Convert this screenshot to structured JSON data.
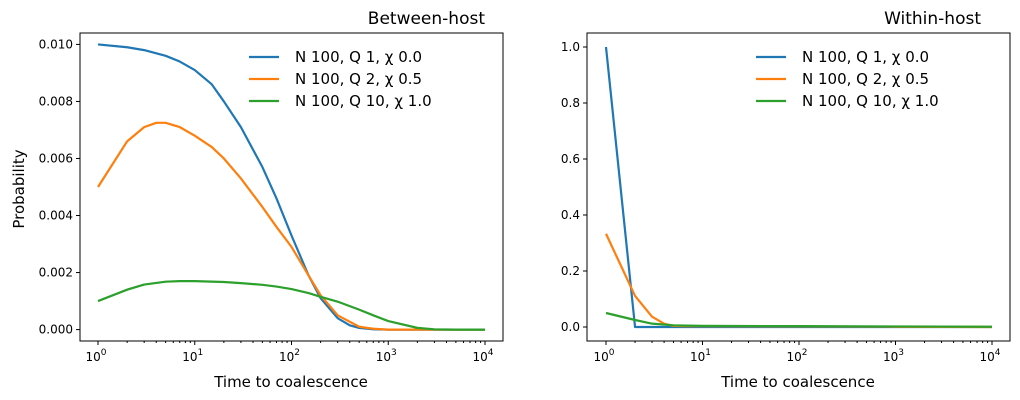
{
  "colors": {
    "blue": "#1f77b4",
    "orange": "#ff7f0e",
    "green": "#2ca02c"
  },
  "chart_data": [
    {
      "type": "line",
      "title": "Between-host",
      "xlabel": "Time to coalescence",
      "ylabel": "Probability",
      "xscale": "log",
      "xlim": [
        1,
        10000
      ],
      "ylim": [
        -0.0004,
        0.0104
      ],
      "yticks": [
        0.0,
        0.002,
        0.004,
        0.006,
        0.008,
        0.01
      ],
      "ytick_labels": [
        "0.000",
        "0.002",
        "0.004",
        "0.006",
        "0.008",
        "0.010"
      ],
      "xticks": [
        1,
        10,
        100,
        1000,
        10000
      ],
      "xtick_labels": [
        [
          "10",
          "0"
        ],
        [
          "10",
          "1"
        ],
        [
          "10",
          "2"
        ],
        [
          "10",
          "3"
        ],
        [
          "10",
          "4"
        ]
      ],
      "legend_position": "top-right",
      "grid": false,
      "series": [
        {
          "name": "N 100, Q 1, χ 0.0",
          "color": "#1f77b4",
          "x": [
            1,
            2,
            3,
            5,
            7,
            10,
            15,
            20,
            30,
            50,
            70,
            100,
            150,
            200,
            300,
            400,
            500,
            700,
            1000,
            2000,
            5000,
            10000
          ],
          "y": [
            0.01,
            0.0099,
            0.0098,
            0.0096,
            0.0094,
            0.0091,
            0.0086,
            0.008,
            0.0071,
            0.0057,
            0.0046,
            0.0033,
            0.0019,
            0.0011,
            0.0004,
            0.00015,
            6e-05,
            1e-05,
            0.0,
            0.0,
            0.0,
            0.0
          ]
        },
        {
          "name": "N 100, Q 2, χ 0.5",
          "color": "#ff7f0e",
          "x": [
            1,
            2,
            3,
            4,
            5,
            7,
            10,
            15,
            20,
            30,
            50,
            70,
            100,
            150,
            200,
            300,
            500,
            700,
            1000,
            2000,
            5000,
            10000
          ],
          "y": [
            0.005,
            0.0066,
            0.0071,
            0.00725,
            0.00725,
            0.0071,
            0.0068,
            0.0064,
            0.006,
            0.0053,
            0.0043,
            0.0036,
            0.0029,
            0.0019,
            0.0012,
            0.0005,
            0.0001,
            3e-05,
            0.0,
            0.0,
            0.0,
            0.0
          ]
        },
        {
          "name": "N 100, Q 10, χ 1.0",
          "color": "#2ca02c",
          "x": [
            1,
            2,
            3,
            5,
            7,
            10,
            20,
            30,
            50,
            70,
            100,
            150,
            200,
            300,
            500,
            700,
            1000,
            2000,
            3000,
            5000,
            10000
          ],
          "y": [
            0.001,
            0.0014,
            0.00158,
            0.00168,
            0.0017,
            0.0017,
            0.00167,
            0.00163,
            0.00157,
            0.00151,
            0.00142,
            0.00128,
            0.00115,
            0.00098,
            0.0007,
            0.0005,
            0.0003,
            6e-05,
            1e-05,
            0.0,
            0.0
          ]
        }
      ]
    },
    {
      "type": "line",
      "title": "Within-host",
      "xlabel": "Time to coalescence",
      "ylabel": "",
      "xscale": "log",
      "xlim": [
        1,
        10000
      ],
      "ylim": [
        -0.05,
        1.05
      ],
      "yticks": [
        0.0,
        0.2,
        0.4,
        0.6,
        0.8,
        1.0
      ],
      "ytick_labels": [
        "0.0",
        "0.2",
        "0.4",
        "0.6",
        "0.8",
        "1.0"
      ],
      "xticks": [
        1,
        10,
        100,
        1000,
        10000
      ],
      "xtick_labels": [
        [
          "10",
          "0"
        ],
        [
          "10",
          "1"
        ],
        [
          "10",
          "2"
        ],
        [
          "10",
          "3"
        ],
        [
          "10",
          "4"
        ]
      ],
      "legend_position": "top-right",
      "grid": false,
      "series": [
        {
          "name": "N 100, Q 1, χ 0.0",
          "color": "#1f77b4",
          "x": [
            1,
            2,
            10000
          ],
          "y": [
            1.0,
            0.0,
            0.0
          ]
        },
        {
          "name": "N 100, Q 2, χ 0.5",
          "color": "#ff7f0e",
          "x": [
            1,
            2,
            3,
            4,
            5,
            7,
            10,
            100,
            1000,
            10000
          ],
          "y": [
            0.333,
            0.111,
            0.037,
            0.012,
            0.004,
            0.003,
            0.003,
            0.002,
            0.001,
            0.0
          ]
        },
        {
          "name": "N 100, Q 10, χ 1.0",
          "color": "#2ca02c",
          "x": [
            1,
            2,
            3,
            5,
            7,
            10,
            100,
            1000,
            10000
          ],
          "y": [
            0.05,
            0.025,
            0.012,
            0.006,
            0.005,
            0.004,
            0.003,
            0.002,
            0.001
          ]
        }
      ]
    }
  ]
}
